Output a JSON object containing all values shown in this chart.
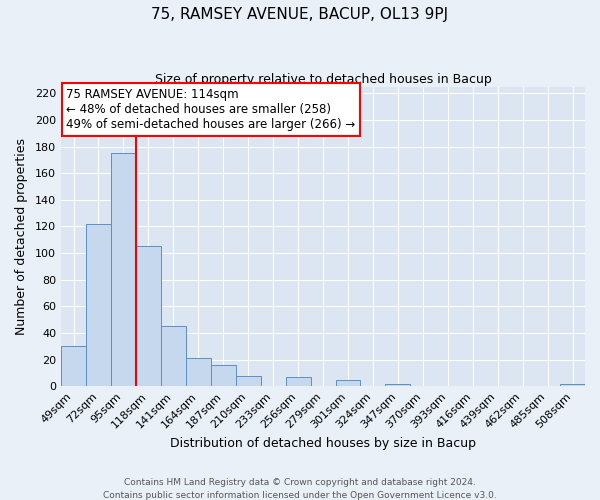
{
  "title": "75, RAMSEY AVENUE, BACUP, OL13 9PJ",
  "subtitle": "Size of property relative to detached houses in Bacup",
  "xlabel": "Distribution of detached houses by size in Bacup",
  "ylabel": "Number of detached properties",
  "bar_labels": [
    "49sqm",
    "72sqm",
    "95sqm",
    "118sqm",
    "141sqm",
    "164sqm",
    "187sqm",
    "210sqm",
    "233sqm",
    "256sqm",
    "279sqm",
    "301sqm",
    "324sqm",
    "347sqm",
    "370sqm",
    "393sqm",
    "416sqm",
    "439sqm",
    "462sqm",
    "485sqm",
    "508sqm"
  ],
  "bar_values": [
    30,
    122,
    175,
    105,
    45,
    21,
    16,
    8,
    0,
    7,
    0,
    5,
    0,
    2,
    0,
    0,
    0,
    0,
    0,
    0,
    2
  ],
  "bar_color": "#c5d8ed",
  "bar_edge_color": "#5b8fc7",
  "vline_color": "red",
  "annotation_title": "75 RAMSEY AVENUE: 114sqm",
  "annotation_line1": "← 48% of detached houses are smaller (258)",
  "annotation_line2": "49% of semi-detached houses are larger (266) →",
  "annotation_box_color": "white",
  "annotation_box_edge_color": "red",
  "ylim": [
    0,
    225
  ],
  "yticks": [
    0,
    20,
    40,
    60,
    80,
    100,
    120,
    140,
    160,
    180,
    200,
    220
  ],
  "footer1": "Contains HM Land Registry data © Crown copyright and database right 2024.",
  "footer2": "Contains public sector information licensed under the Open Government Licence v3.0.",
  "bg_color": "#eaf0f7",
  "plot_bg_color": "#dce6f2",
  "grid_color": "#ffffff",
  "title_fontsize": 11,
  "subtitle_fontsize": 9,
  "axis_label_fontsize": 9,
  "tick_fontsize": 8,
  "annotation_fontsize": 8.5,
  "footer_fontsize": 6.5
}
